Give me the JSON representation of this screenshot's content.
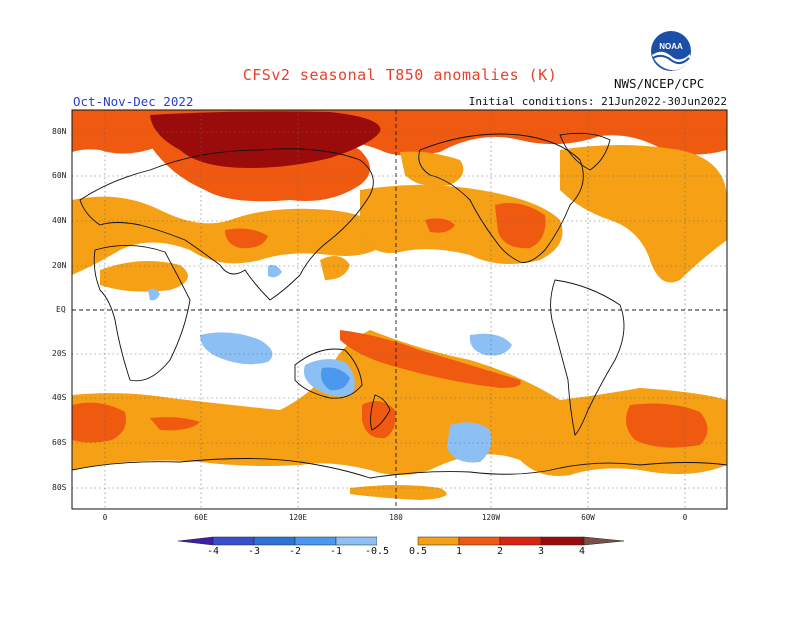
{
  "header": {
    "title": "CFSv2 seasonal T850 anomalies (K)",
    "period": "Oct-Nov-Dec 2022",
    "initial_conditions": "Initial conditions: 21Jun2022-30Jun2022",
    "agency": "NWS/NCEP/CPC",
    "logo_text": "NOAA"
  },
  "map": {
    "lat_labels": [
      "80N",
      "60N",
      "40N",
      "20N",
      "EQ",
      "20S",
      "40S",
      "60S",
      "80S"
    ],
    "lon_labels": [
      "0",
      "60E",
      "120E",
      "180",
      "120W",
      "60W",
      "0"
    ]
  },
  "colorbar": {
    "labels": [
      "-4",
      "-3",
      "-2",
      "-1",
      "-0.5",
      "0.5",
      "1",
      "2",
      "3",
      "4"
    ],
    "colors": [
      "#3d1fa8",
      "#3a4fd0",
      "#2e72d8",
      "#4b98ee",
      "#8cc0f5",
      "#ffffff",
      "#f5a015",
      "#f05a10",
      "#d92412",
      "#9a0c0c",
      "#c9a296",
      "#7a5048"
    ]
  }
}
